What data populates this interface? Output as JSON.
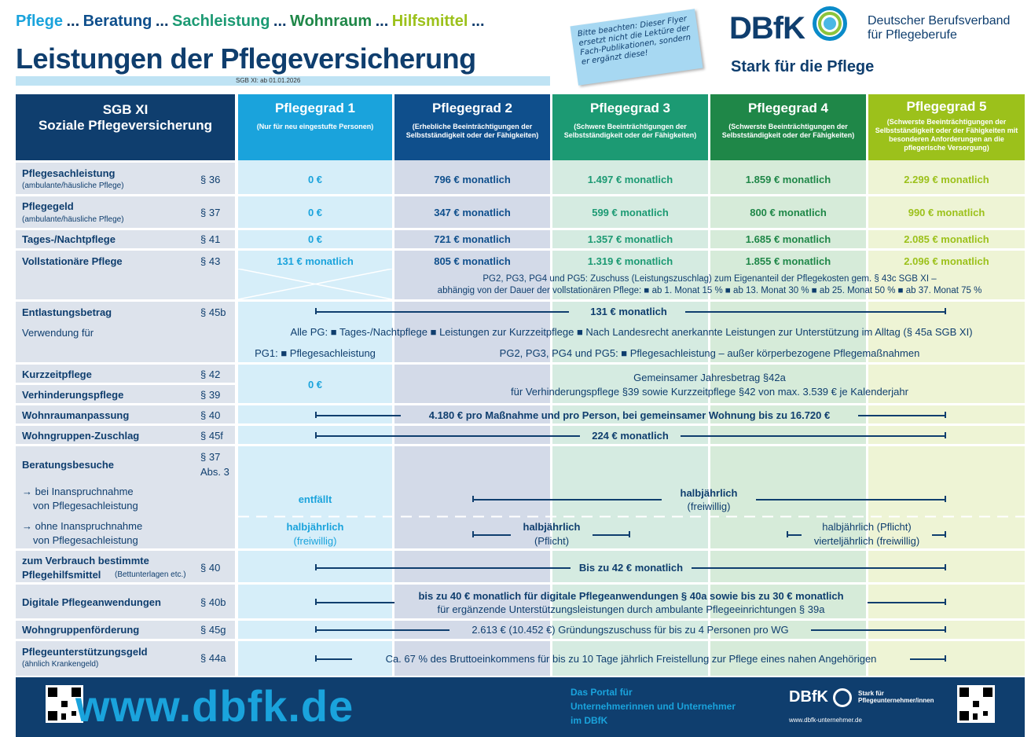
{
  "header": {
    "tagline": [
      "Pflege",
      "Beratung",
      "Sachleistung",
      "Wohnraum",
      "Hilfsmittel"
    ],
    "dots": "...",
    "title": "Leistungen der Pflegeversicherung",
    "date": "SGB XI: ab 01.01.2026",
    "note": "Bitte beachten: Dieser Flyer ersetzt nicht die Lektüre der Fach-Publikationen, sondern er ergänzt diese!",
    "logo": "DBfK",
    "org": "Deutscher Berufsverband für Pflegeberufe",
    "slogan": "Stark für die Pflege"
  },
  "columns": [
    {
      "title": "SGB XI",
      "sub": "Soziale Pflegeversicherung"
    },
    {
      "title": "Pflegegrad 1",
      "sub": "(Nur für neu eingestufte Personen)"
    },
    {
      "title": "Pflegegrad 2",
      "sub": "(Erhebliche Beeinträchtigungen der Selbstständigkeit oder der Fähigkeiten)"
    },
    {
      "title": "Pflegegrad 3",
      "sub": "(Schwere Beeinträchtigungen der Selbstständigkeit oder der Fähigkeiten)"
    },
    {
      "title": "Pflegegrad 4",
      "sub": "(Schwerste Beeinträchtigungen der Selbstständigkeit oder der Fähigkeiten)"
    },
    {
      "title": "Pflegegrad 5",
      "sub": "(Schwerste Beeinträchtigungen der Selbstständigkeit oder der Fähigkeiten mit besonderen Anforderungen an die pflegerische Versorgung)"
    }
  ],
  "rows": {
    "sach": {
      "label": "Pflegesachleistung",
      "sub": "(ambulante/häusliche Pflege)",
      "para": "§ 36",
      "values": [
        "0 €",
        "796 € monatlich",
        "1.497 € monatlich",
        "1.859 € monatlich",
        "2.299 € monatlich"
      ]
    },
    "geld": {
      "label": "Pflegegeld",
      "sub": "(ambulante/häusliche Pflege)",
      "para": "§ 37",
      "values": [
        "0 €",
        "347 € monatlich",
        "599 € monatlich",
        "800 € monatlich",
        "990 € monatlich"
      ]
    },
    "tages": {
      "label": "Tages-/Nachtpflege",
      "para": "§ 41",
      "values": [
        "0 €",
        "721 € monatlich",
        "1.357 € monatlich",
        "1.685 € monatlich",
        "2.085 € monatlich"
      ]
    },
    "voll": {
      "label": "Vollstationäre Pflege",
      "para": "§ 43",
      "values": [
        "131 € monatlich",
        "805 € monatlich",
        "1.319 € monatlich",
        "1.855 € monatlich",
        "2.096 € monatlich"
      ],
      "note1": "PG2, PG3, PG4 und PG5: Zuschuss (Leistungszuschlag) zum Eigenanteil der Pflegekosten gem. § 43c SGB XI –",
      "note2": "abhängig von der Dauer der vollstationären Pflege: ■ ab 1. Monat 15 % ■ ab 13. Monat 30 % ■ ab 25. Monat 50 % ■ ab 37. Monat 75 %"
    },
    "entl": {
      "label": "Entlastungsbetrag",
      "para": "§ 45b",
      "value": "131 € monatlich",
      "use": "Verwendung für",
      "all": "Alle PG: ■ Tages-/Nachtpflege ■ Leistungen zur Kurzzeitpflege ■ Nach Landesrecht anerkannte Leistungen zur Unterstützung im Alltag (§ 45a SGB XI)",
      "pg1": "PG1: ■ Pflegesachleistung",
      "pg25": "PG2, PG3, PG4 und PG5: ■ Pflegesachleistung – außer körperbezogene Pflegemaßnahmen"
    },
    "kurz": {
      "label": "Kurzzeitpflege",
      "para": "§ 42"
    },
    "verh": {
      "label": "Verhinderungspflege",
      "para": "§ 39",
      "pg1": "0 €",
      "text1": "Gemeinsamer Jahresbetrag §42a",
      "text2": "für Verhinderungspflege §39 sowie Kurzzeitpflege §42 von max. 3.539 € je Kalenderjahr"
    },
    "wohnraum": {
      "label": "Wohnraumanpassung",
      "para": "§ 40",
      "value": "4.180 € pro Maßnahme und pro Person, bei gemeinsamer Wohnung bis zu 16.720 €"
    },
    "wgz": {
      "label": "Wohngruppen-Zuschlag",
      "para": "§ 45f",
      "value": "224 € monatlich"
    },
    "berat": {
      "label": "Beratungsbesuche",
      "para": "§ 37",
      "para2": "Abs. 3",
      "mit1": "→ bei Inanspruchnahme",
      "mit2": "von Pflegesachleistung",
      "ohne1": "→ ohne Inanspruchnahme",
      "ohne2": "von Pflegesachleistung",
      "pg1a": "entfällt",
      "mita": "halbjährlich",
      "mitb": "(freiwillig)",
      "pg1b": "halbjährlich",
      "pg1c": "(freiwillig)",
      "pg23a": "halbjährlich",
      "pg23b": "(Pflicht)",
      "pg45a": "halbjährlich (Pflicht)",
      "pg45b": "vierteljährlich (freiwillig)"
    },
    "hilfs": {
      "label": "zum Verbrauch bestimmte",
      "label2": "Pflegehilfsmittel",
      "sub": "(Bettunterlagen etc.)",
      "para": "§ 40",
      "value": "Bis zu 42 € monatlich"
    },
    "digi": {
      "label": "Digitale Pflegeanwendungen",
      "para": "§ 40b",
      "text1": "bis zu 40 € monatlich für digitale Pflegeanwendungen § 40a sowie bis zu 30 € monatlich",
      "text2": "für ergänzende Unterstützungsleistungen durch ambulante Pflegeeinrichtungen § 39a"
    },
    "wgf": {
      "label": "Wohngruppenförderung",
      "para": "§ 45g",
      "value": "2.613 € (10.452 €) Gründungszuschuss für bis zu 4 Personen pro WG"
    },
    "unter": {
      "label": "Pflegeunterstützungsgeld",
      "sub": "(ähnlich Krankengeld)",
      "para": "§ 44a",
      "value": "Ca. 67 % des Bruttoeinkommens für bis zu 10 Tage jährlich Freistellung zur Pflege eines nahen Angehörigen"
    }
  },
  "footer": {
    "url": "www.dbfk.de",
    "portal1": "Das Portal für",
    "portal2": "Unternehmerinnen und Unternehmer",
    "portal3": "im DBfK",
    "logo": "DBfK",
    "logosub": "Stark für Pflegeunternehmer/innen",
    "site": "www.dbfk-unternehmer.de"
  },
  "colors": {
    "navy": "#0f3e6e",
    "pg1": "#1aa3dc",
    "pg2": "#0f4f8c",
    "pg3": "#1c9a73",
    "pg4": "#1f8748",
    "pg5": "#9cc11b"
  }
}
